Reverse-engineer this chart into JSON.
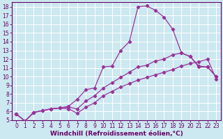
{
  "xlabel": "Windchill (Refroidissement éolien,°C)",
  "bg_color": "#cce8f0",
  "grid_color": "#ffffff",
  "line_color": "#993399",
  "xlim": [
    -0.5,
    23.5
  ],
  "ylim": [
    5,
    18.5
  ],
  "xticks": [
    0,
    1,
    2,
    3,
    4,
    5,
    6,
    7,
    8,
    9,
    10,
    11,
    12,
    13,
    14,
    15,
    16,
    17,
    18,
    19,
    20,
    21,
    22,
    23
  ],
  "yticks": [
    5,
    6,
    7,
    8,
    9,
    10,
    11,
    12,
    13,
    14,
    15,
    16,
    17,
    18
  ],
  "series": [
    {
      "x": [
        0,
        1,
        2,
        3,
        4,
        5,
        6,
        7,
        8,
        9,
        10,
        11,
        12,
        13,
        14,
        15,
        16,
        17,
        18,
        19,
        20,
        21,
        22,
        23
      ],
      "y": [
        5.7,
        4.9,
        5.9,
        6.1,
        6.3,
        6.4,
        6.6,
        7.4,
        8.5,
        8.7,
        11.1,
        11.2,
        13.0,
        14.0,
        18.0,
        18.1,
        17.6,
        16.8,
        15.4,
        12.7,
        12.3,
        11.1,
        11.1,
        10.0
      ]
    },
    {
      "x": [
        0,
        1,
        2,
        3,
        4,
        5,
        6,
        7,
        8,
        9,
        10,
        11,
        12,
        13,
        14,
        15,
        16,
        17,
        18,
        19,
        20,
        21,
        22,
        23
      ],
      "y": [
        5.7,
        4.9,
        5.9,
        6.1,
        6.3,
        6.4,
        6.5,
        6.3,
        7.2,
        7.8,
        8.7,
        9.3,
        9.9,
        10.5,
        11.1,
        11.3,
        11.8,
        12.0,
        12.5,
        12.7,
        12.3,
        11.2,
        11.1,
        10.0
      ]
    },
    {
      "x": [
        0,
        1,
        2,
        3,
        4,
        5,
        6,
        7,
        8,
        9,
        10,
        11,
        12,
        13,
        14,
        15,
        16,
        17,
        18,
        19,
        20,
        21,
        22,
        23
      ],
      "y": [
        5.7,
        4.9,
        5.9,
        6.1,
        6.3,
        6.4,
        6.3,
        5.8,
        6.5,
        7.0,
        7.8,
        8.3,
        8.8,
        9.2,
        9.6,
        9.9,
        10.2,
        10.5,
        10.8,
        11.2,
        11.5,
        11.7,
        12.0,
        9.7
      ]
    }
  ],
  "marker": "D",
  "markersize": 2.2,
  "linewidth": 0.9,
  "fontsize_tick": 5.5,
  "fontsize_label": 6.5
}
